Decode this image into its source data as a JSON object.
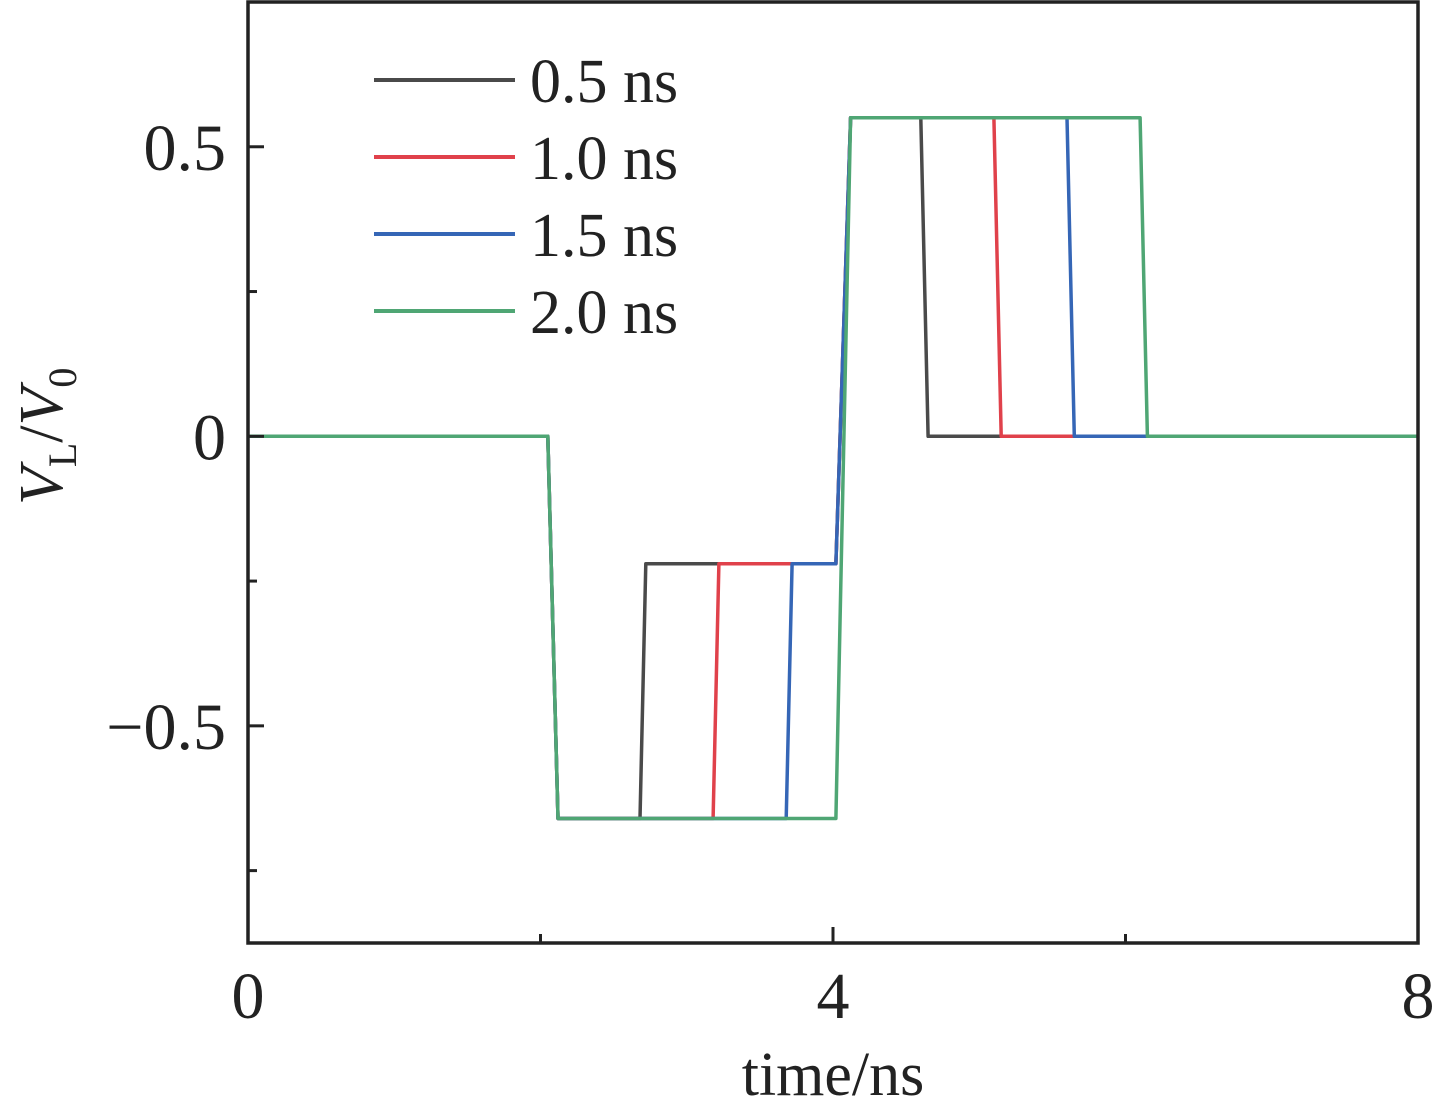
{
  "chart_data": {
    "type": "line",
    "xlabel": "time/ns",
    "ylabel": {
      "main": "V",
      "main_sub": "L",
      "slash": "/",
      "ref": "V",
      "ref_sub": "0"
    },
    "xlim": [
      0,
      8
    ],
    "ylim": [
      -0.875,
      0.75
    ],
    "x_ticks": [
      0,
      4,
      8
    ],
    "x_minor_ticks": [
      2,
      6
    ],
    "x_tick_labels": [
      "0",
      "4",
      "8"
    ],
    "y_ticks": [
      0.5,
      0,
      -0.5
    ],
    "y_minor_ticks": [
      0.25,
      -0.25,
      -0.75
    ],
    "y_tick_labels": [
      "0.5",
      "0",
      "−0.5"
    ],
    "grid": false,
    "legend_position": "top-left",
    "series": [
      {
        "name": "0.5 ns",
        "color": "#4a4a4a",
        "x": [
          0,
          2.05,
          2.12,
          2.68,
          2.72,
          4.02,
          4.12,
          4.6,
          4.65,
          8
        ],
        "y": [
          0,
          0,
          -0.66,
          -0.66,
          -0.22,
          -0.22,
          0.55,
          0.55,
          0,
          0
        ]
      },
      {
        "name": "1.0 ns",
        "color": "#e0414b",
        "x": [
          0,
          2.05,
          2.12,
          3.18,
          3.22,
          4.02,
          4.12,
          5.1,
          5.15,
          8
        ],
        "y": [
          0,
          0,
          -0.66,
          -0.66,
          -0.22,
          -0.22,
          0.55,
          0.55,
          0,
          0
        ]
      },
      {
        "name": "1.5 ns",
        "color": "#3566b6",
        "x": [
          0,
          2.05,
          2.12,
          3.68,
          3.72,
          4.02,
          4.12,
          5.6,
          5.65,
          8
        ],
        "y": [
          0,
          0,
          -0.66,
          -0.66,
          -0.22,
          -0.22,
          0.55,
          0.55,
          0,
          0
        ]
      },
      {
        "name": "2.0 ns",
        "color": "#4fa674",
        "x": [
          0,
          2.05,
          2.12,
          4.02,
          4.12,
          6.1,
          6.15,
          8
        ],
        "y": [
          0,
          0,
          -0.66,
          -0.66,
          0.55,
          0.55,
          0,
          0
        ]
      }
    ]
  }
}
